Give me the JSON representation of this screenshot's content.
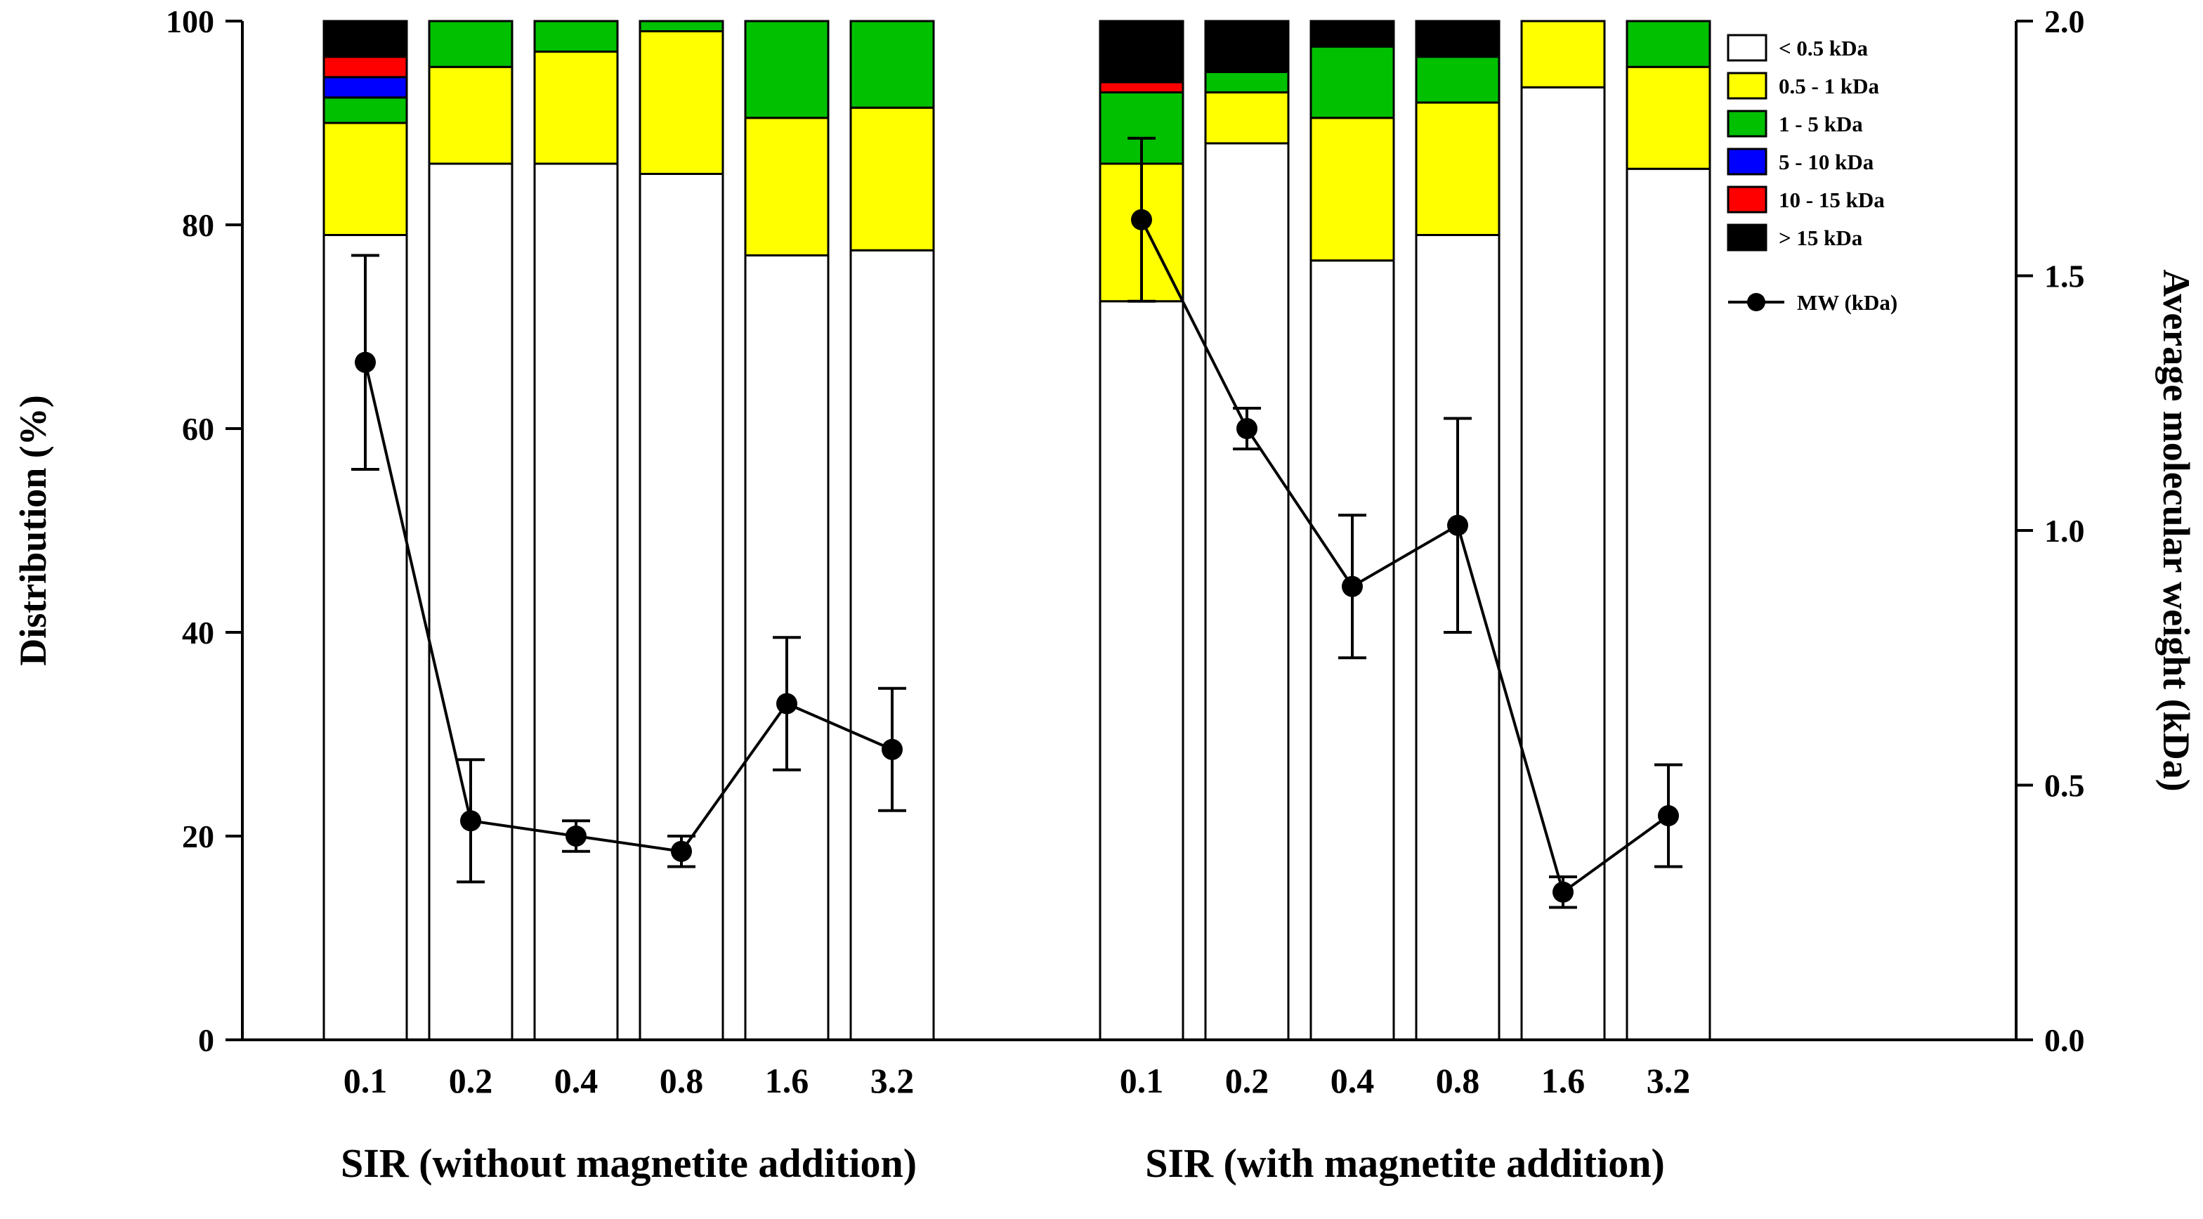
{
  "chart_data": {
    "type": "bar",
    "subtype": "stacked-bar-with-line-overlay",
    "grid": false,
    "legend_position": "top-right-inside",
    "left_axis": {
      "label": "Distribution (%)",
      "min": 0,
      "max": 100,
      "tick_values": [
        0,
        20,
        40,
        60,
        80,
        100
      ],
      "tick_labels": [
        "0",
        "20",
        "40",
        "60",
        "80",
        "100"
      ]
    },
    "right_axis": {
      "label": "Average molecular weight (kDa)",
      "min": 0,
      "max": 2,
      "tick_values": [
        0,
        0.5,
        1,
        1.5,
        2
      ],
      "tick_labels": [
        "0.0",
        "0.5",
        "1.0",
        "1.5",
        "2.0"
      ]
    },
    "stack_series": [
      {
        "name": "< 0.5 kDa",
        "color": "#ffffff"
      },
      {
        "name": "0.5 - 1 kDa",
        "color": "#ffff00"
      },
      {
        "name": "1 - 5 kDa",
        "color": "#00c000"
      },
      {
        "name": "5 - 10 kDa",
        "color": "#0000ff"
      },
      {
        "name": "10 - 15 kDa",
        "color": "#ff0000"
      },
      {
        "name": "> 15 kDa",
        "color": "#000000"
      }
    ],
    "line_series": {
      "name": "MW (kDa)",
      "color": "#000000",
      "marker": "filled-circle"
    },
    "groups": [
      {
        "label": "SIR (without magnetite addition)",
        "categories": [
          "0.1",
          "0.2",
          "0.4",
          "0.8",
          "1.6",
          "3.2"
        ],
        "stacks": [
          [
            79,
            11,
            2.5,
            2,
            2,
            3.5
          ],
          [
            86,
            9.5,
            4.5,
            0,
            0,
            0
          ],
          [
            86,
            11,
            3,
            0,
            0,
            0
          ],
          [
            85,
            14,
            1,
            0,
            0,
            0
          ],
          [
            77,
            13.5,
            9.5,
            0,
            0,
            0
          ],
          [
            77.5,
            14,
            8.5,
            0,
            0,
            0
          ]
        ],
        "mw_kda": [
          1.33,
          0.43,
          0.4,
          0.37,
          0.66,
          0.57
        ],
        "mw_err": [
          0.21,
          0.12,
          0.03,
          0.03,
          0.13,
          0.12
        ]
      },
      {
        "label": "SIR (with magnetite addition)",
        "categories": [
          "0.1",
          "0.2",
          "0.4",
          "0.8",
          "1.6",
          "3.2"
        ],
        "stacks": [
          [
            72.5,
            13.5,
            7,
            0,
            1,
            6
          ],
          [
            88,
            5,
            2,
            0,
            0,
            5
          ],
          [
            76.5,
            14,
            7,
            0,
            0,
            2.5
          ],
          [
            79,
            13,
            4.5,
            0,
            0,
            3.5
          ],
          [
            93.5,
            6.5,
            0,
            0,
            0,
            0
          ],
          [
            85.5,
            10,
            4.5,
            0,
            0,
            0
          ]
        ],
        "mw_kda": [
          1.61,
          1.2,
          0.89,
          1.01,
          0.29,
          0.44
        ],
        "mw_err": [
          0.16,
          0.04,
          0.14,
          0.21,
          0.03,
          0.1
        ]
      }
    ]
  }
}
